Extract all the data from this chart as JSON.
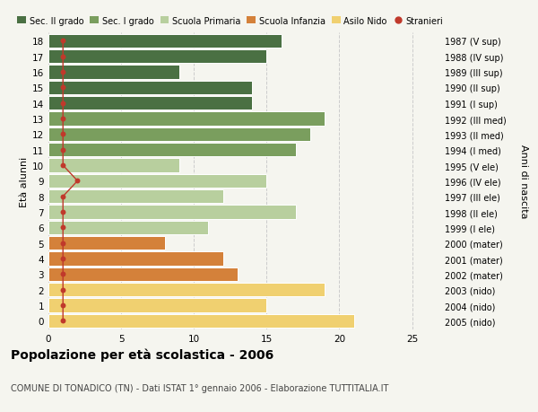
{
  "ages": [
    18,
    17,
    16,
    15,
    14,
    13,
    12,
    11,
    10,
    9,
    8,
    7,
    6,
    5,
    4,
    3,
    2,
    1,
    0
  ],
  "right_labels": [
    "1987 (V sup)",
    "1988 (IV sup)",
    "1989 (III sup)",
    "1990 (II sup)",
    "1991 (I sup)",
    "1992 (III med)",
    "1993 (II med)",
    "1994 (I med)",
    "1995 (V ele)",
    "1996 (IV ele)",
    "1997 (III ele)",
    "1998 (II ele)",
    "1999 (I ele)",
    "2000 (mater)",
    "2001 (mater)",
    "2002 (mater)",
    "2003 (nido)",
    "2004 (nido)",
    "2005 (nido)"
  ],
  "bar_values": [
    16,
    15,
    9,
    14,
    14,
    19,
    18,
    17,
    9,
    15,
    12,
    17,
    11,
    8,
    12,
    13,
    19,
    15,
    21
  ],
  "stranieri": [
    1,
    1,
    1,
    1,
    1,
    1,
    1,
    1,
    1,
    2,
    1,
    1,
    1,
    1,
    1,
    1,
    1,
    1,
    1
  ],
  "bar_colors": [
    "#4a7043",
    "#4a7043",
    "#4a7043",
    "#4a7043",
    "#4a7043",
    "#7a9e5e",
    "#7a9e5e",
    "#7a9e5e",
    "#b8cf9e",
    "#b8cf9e",
    "#b8cf9e",
    "#b8cf9e",
    "#b8cf9e",
    "#d4813a",
    "#d4813a",
    "#d4813a",
    "#f0d070",
    "#f0d070",
    "#f0d070"
  ],
  "stranieri_color": "#c0392b",
  "stranieri_line_color": "#c0392b",
  "bg_color": "#f5f5ef",
  "grid_color": "#cccccc",
  "title": "Popolazione per età scolastica - 2006",
  "subtitle": "COMUNE DI TONADICO (TN) - Dati ISTAT 1° gennaio 2006 - Elaborazione TUTTITALIA.IT",
  "ylabel": "Età alunni",
  "right_ylabel": "Anni di nascita",
  "xlim": [
    0,
    27
  ],
  "legend_labels": [
    "Sec. II grado",
    "Sec. I grado",
    "Scuola Primaria",
    "Scuola Infanzia",
    "Asilo Nido",
    "Stranieri"
  ],
  "legend_colors": [
    "#4a7043",
    "#7a9e5e",
    "#b8cf9e",
    "#d4813a",
    "#f0d070",
    "#c0392b"
  ]
}
